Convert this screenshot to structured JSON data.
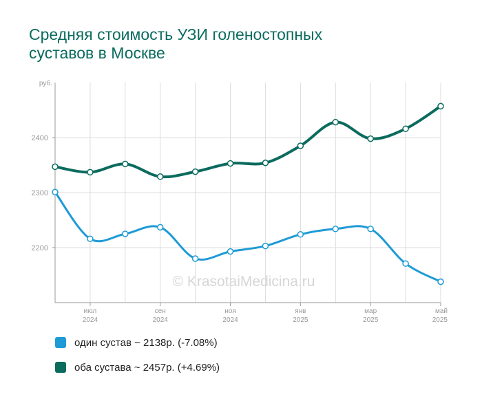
{
  "title_lines": [
    "Средняя стоимость УЗИ голеностопных",
    "суставов в Москве"
  ],
  "watermark": "© KrasotaiMedicina.ru",
  "chart_data": {
    "type": "line",
    "y_unit": "руб.",
    "ylim": [
      2100,
      2500
    ],
    "yticks": [
      2200,
      2300,
      2400
    ],
    "grid": true,
    "x": [
      "2024-06",
      "2024-07",
      "2024-08",
      "2024-09",
      "2024-10",
      "2024-11",
      "2024-12",
      "2025-01",
      "2025-02",
      "2025-03",
      "2025-04",
      "2025-05"
    ],
    "xtick_labels": [
      {
        "index": 1,
        "month": "июл",
        "year": "2024"
      },
      {
        "index": 3,
        "month": "сен",
        "year": "2024"
      },
      {
        "index": 5,
        "month": "ноя",
        "year": "2024"
      },
      {
        "index": 7,
        "month": "янв",
        "year": "2025"
      },
      {
        "index": 9,
        "month": "мар",
        "year": "2025"
      },
      {
        "index": 11,
        "month": "май",
        "year": "2025"
      }
    ],
    "series": [
      {
        "name": "один сустав",
        "color": "#1e9ad6",
        "values": [
          2301,
          2216,
          2225,
          2237,
          2180,
          2193,
          2203,
          2224,
          2234,
          2234,
          2171,
          2138
        ]
      },
      {
        "name": "оба сустава",
        "color": "#0b6b5e",
        "values": [
          2347,
          2337,
          2352,
          2329,
          2338,
          2353,
          2354,
          2385,
          2428,
          2398,
          2416,
          2457
        ]
      }
    ]
  },
  "legend": [
    {
      "label": "один сустав ~ 2138р. (-7.08%)",
      "color": "#1e9ad6"
    },
    {
      "label": "оба сустава ~ 2457р. (+4.69%)",
      "color": "#0b6b5e"
    }
  ]
}
